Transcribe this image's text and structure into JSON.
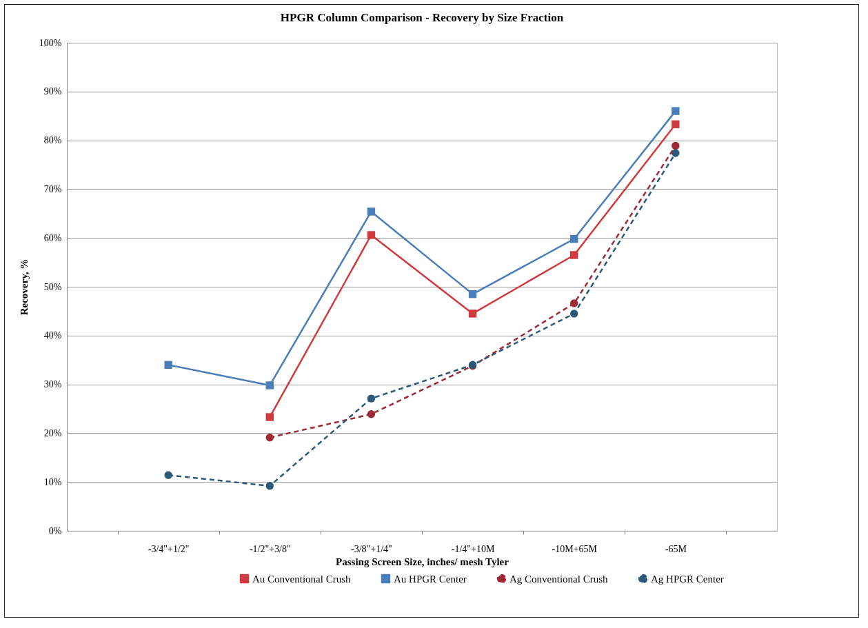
{
  "chart_data": {
    "type": "line",
    "title": "HPGR Column Comparison - Recovery by Size Fraction",
    "xlabel": "Passing Screen Size, inches/ mesh Tyler",
    "ylabel": "Recovery, %",
    "categories": [
      "-3/4\"+1/2\"",
      "-1/2\"+3/8\"",
      "-3/8\"+1/4\"",
      "-1/4\"+10M",
      "-10M+65M",
      "-65M"
    ],
    "series": [
      {
        "name": "Au Conventional Crush",
        "color": "#d03a3f",
        "marker": "square",
        "line_style": "solid",
        "values": [
          null,
          23.3,
          60.6,
          44.5,
          56.5,
          83.3
        ]
      },
      {
        "name": "Au HPGR Center",
        "color": "#4a7ebb",
        "marker": "square",
        "line_style": "solid",
        "values": [
          34.0,
          29.8,
          65.4,
          48.5,
          59.8,
          86.0
        ]
      },
      {
        "name": "Ag Conventional Crush",
        "color": "#9e2a36",
        "marker": "circle",
        "line_style": "dashed",
        "values": [
          null,
          19.1,
          23.9,
          33.8,
          46.6,
          78.9
        ]
      },
      {
        "name": "Ag HPGR Center",
        "color": "#2b5a78",
        "marker": "circle",
        "line_style": "dashed",
        "values": [
          11.4,
          9.2,
          27.1,
          34.0,
          44.5,
          77.4
        ]
      }
    ],
    "ylim": [
      0,
      100
    ],
    "yticks": [
      {
        "value": 0,
        "label": "0%"
      },
      {
        "value": 10,
        "label": "10%"
      },
      {
        "value": 20,
        "label": "20%"
      },
      {
        "value": 30,
        "label": "30%"
      },
      {
        "value": 40,
        "label": "40%"
      },
      {
        "value": 50,
        "label": "50%"
      },
      {
        "value": 60,
        "label": "60%"
      },
      {
        "value": 70,
        "label": "70%"
      },
      {
        "value": 80,
        "label": "80%"
      },
      {
        "value": 90,
        "label": "90%"
      },
      {
        "value": 100,
        "label": "100%"
      }
    ],
    "grid": "y",
    "legend": "bottom right"
  }
}
